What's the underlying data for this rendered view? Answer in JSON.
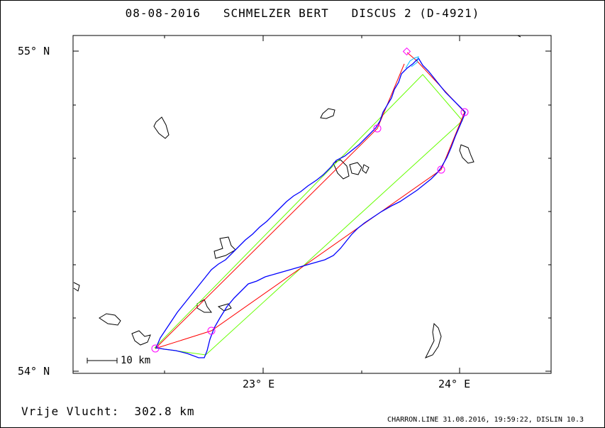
{
  "header": {
    "date": "08-08-2016",
    "pilot": "SCHMELZER BERT",
    "glider": "DISCUS 2 (D-4921)"
  },
  "axes": {
    "lat_labels": [
      "55° N",
      "54° N"
    ],
    "lon_labels": [
      "23° E",
      "24° E"
    ]
  },
  "scale": {
    "label": "10 km"
  },
  "footer": {
    "distance_label": "Vrije Vlucht:",
    "distance_value": "302.8 km",
    "credits": "CHARRON.LINE 31.08.2016, 19:59:22, DISLIN 10.3"
  },
  "colors": {
    "track": "#0000ff",
    "course": "#ff0000",
    "optimized": "#66ff00",
    "turnpoint": "#ff00ff",
    "coast": "#000000",
    "frame": "#000000"
  },
  "map": {
    "lon_range": [
      22.0,
      24.5
    ],
    "lat_range": [
      54.0,
      55.0
    ],
    "turnpoints": [
      {
        "lon": 23.74,
        "lat": 55.0,
        "kind": "start"
      },
      {
        "lon": 23.58,
        "lat": 54.76
      },
      {
        "lon": 24.07,
        "lat": 54.81
      },
      {
        "lon": 23.94,
        "lat": 54.63
      },
      {
        "lon": 22.74,
        "lat": 54.13
      },
      {
        "lon": 22.43,
        "lat": 54.07
      }
    ]
  }
}
